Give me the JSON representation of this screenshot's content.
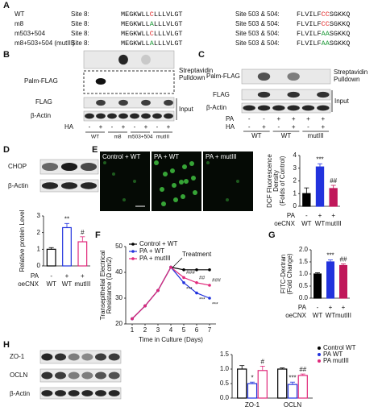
{
  "panel_letters": [
    "A",
    "B",
    "C",
    "D",
    "E",
    "F",
    "G",
    "H"
  ],
  "panel_a": {
    "rows": [
      {
        "name": "WT",
        "site1": "Site 8:",
        "seq1": {
          "parts": [
            "MEGKWLL",
            "C",
            "LLLVLGT"
          ],
          "color": "#e02020"
        },
        "site2": "Site 503 & 504:",
        "seq2": {
          "parts": [
            "FLVILF",
            "CC",
            "SGKKQ"
          ],
          "color": "#e02020"
        }
      },
      {
        "name": "m8",
        "site1": "Site 8:",
        "seq1": {
          "parts": [
            "MEGKWLL",
            "A",
            "LLLVLGT"
          ],
          "color": "#1f9a3a"
        },
        "site2": "Site 503 & 504:",
        "seq2": {
          "parts": [
            "FLVILF",
            "CC",
            "SGKKQ"
          ],
          "color": "#e02020"
        }
      },
      {
        "name": "m503+504",
        "site1": "Site 8:",
        "seq1": {
          "parts": [
            "MEGKWLL",
            "C",
            "LLLVLGT"
          ],
          "color": "#e02020"
        },
        "site2": "Site 503 & 504:",
        "seq2": {
          "parts": [
            "FLVILF",
            "AA",
            "SGKKQ"
          ],
          "color": "#1f9a3a"
        }
      },
      {
        "name": "m8+503+504 (mutIII)",
        "site1": "Site 8:",
        "seq1": {
          "parts": [
            "MEGKWLL",
            "A",
            "LLLVLGT"
          ],
          "color": "#1f9a3a"
        },
        "site2": "Site 503 & 504:",
        "seq2": {
          "parts": [
            "FLVILF",
            "AA",
            "SGKKQ"
          ],
          "color": "#1f9a3a"
        }
      }
    ]
  },
  "panel_b": {
    "pulldown_label": "Palm-FLAG",
    "pulldown": [
      "Streptavidin",
      "Pulldown"
    ],
    "input_labels": [
      "FLAG",
      "β-Actin"
    ],
    "input": "Input",
    "ha_label": "HA",
    "ha": [
      "-",
      "+",
      "-",
      "+",
      "-",
      "+",
      "-",
      "+"
    ],
    "groups": [
      "WT",
      "m8",
      "m503+504",
      "mutIII"
    ]
  },
  "panel_c": {
    "pulldown_label": "Palm-FLAG",
    "pulldown": [
      "Streptavidin",
      "Pulldown"
    ],
    "input_labels": [
      "FLAG",
      "β-Actin"
    ],
    "input": "Input",
    "pa_label": "PA",
    "pa": [
      "-",
      "-",
      "+",
      "+",
      "+",
      "+"
    ],
    "ha_label": "HA",
    "ha": [
      "-",
      "+",
      "-",
      "+",
      "-",
      "+"
    ],
    "groups": [
      "WT",
      "WT",
      "mutIII"
    ]
  },
  "panel_d": {
    "blots": [
      "CHOP",
      "β-Actin"
    ]
  },
  "panel_e": {
    "images": [
      "Control + WT",
      "PA + WT",
      "PA + mutIII"
    ]
  },
  "panel_h": {
    "blots": [
      "ZO-1",
      "OCLN",
      "β-Actin"
    ]
  },
  "chart_data": [
    {
      "type": "bar",
      "ylabel": [
        "Relative protein Level"
      ],
      "values": [
        1.0,
        2.3,
        1.45
      ],
      "errors": [
        0.1,
        0.25,
        0.3
      ],
      "stars": [
        null,
        "**",
        "#"
      ],
      "colors": [
        "#000000",
        "#2233dd",
        "#e0287a"
      ],
      "filled": false,
      "ylim": [
        0,
        3
      ],
      "yticks": [
        0,
        1,
        2,
        3
      ],
      "rows": [
        {
          "label": "PA",
          "values": [
            "-",
            "+",
            "+"
          ]
        },
        {
          "label": "oeCNX",
          "values": [
            "WT",
            "WT",
            "mutIII"
          ]
        }
      ]
    },
    {
      "type": "bar",
      "ylabel": [
        "DCF Fluorescence",
        "Density",
        "(Folds of Control)"
      ],
      "values": [
        1.0,
        3.1,
        1.4
      ],
      "errors": [
        0.45,
        0.25,
        0.25
      ],
      "stars": [
        null,
        "***",
        "##"
      ],
      "colors": [
        "#000000",
        "#2233dd",
        "#c0185a"
      ],
      "filled": true,
      "ylim": [
        0,
        4
      ],
      "yticks": [
        0,
        1,
        2,
        3,
        4
      ],
      "rows": [
        {
          "label": "PA",
          "values": [
            "-",
            "+",
            "+"
          ]
        },
        {
          "label": "oeCNX",
          "values": [
            "WT",
            "WT",
            "mutIII"
          ]
        }
      ]
    },
    {
      "type": "line",
      "ylabel": [
        "Transepithelial Electrical",
        "Resistance (Ω cm2)"
      ],
      "xlabel": "Time in Culture (Days)",
      "annotation": "Treatment",
      "x": [
        1,
        2,
        3,
        4,
        5,
        6,
        7
      ],
      "xlim": [
        0.5,
        7.5
      ],
      "xticks": [
        1,
        2,
        3,
        4,
        5,
        6,
        7
      ],
      "ylim": [
        20,
        50
      ],
      "yticks": [
        20,
        30,
        40,
        50
      ],
      "series": [
        {
          "name": "Control + WT",
          "color": "#000000",
          "values": [
            22,
            27,
            33,
            42,
            41,
            41,
            41
          ],
          "stars": [
            null,
            null,
            null,
            null,
            null,
            null,
            null
          ]
        },
        {
          "name": "PA + WT",
          "color": "#2233dd",
          "values": [
            22,
            27,
            33,
            42,
            36,
            32,
            30
          ],
          "stars": [
            null,
            null,
            null,
            null,
            "***",
            "***",
            "***"
          ]
        },
        {
          "name": "PA + mutIII",
          "color": "#e0287a",
          "values": [
            22,
            27,
            33,
            42,
            38,
            36,
            35
          ],
          "stars": [
            null,
            null,
            null,
            null,
            "###",
            "##",
            "###"
          ]
        }
      ]
    },
    {
      "type": "bar",
      "ylabel": [
        "FITC-Dextran",
        "(Fold Change)"
      ],
      "values": [
        1.0,
        1.5,
        1.35
      ],
      "errors": [
        0.05,
        0.08,
        0.07
      ],
      "stars": [
        null,
        "***",
        "##"
      ],
      "colors": [
        "#000000",
        "#2233dd",
        "#c0185a"
      ],
      "filled": true,
      "ylim": [
        0,
        2
      ],
      "yticks": [
        {
          "value": 0,
          "label": "0.0"
        },
        {
          "value": 0.5,
          "label": "0.5"
        },
        {
          "value": 1,
          "label": "1.0"
        },
        {
          "value": 1.5,
          "label": "1.5"
        },
        {
          "value": 2,
          "label": "2.0"
        }
      ],
      "rows": [
        {
          "label": "PA",
          "values": [
            "-",
            "+",
            "+"
          ]
        },
        {
          "label": "oeCNX",
          "values": [
            "WT",
            "WT",
            "mutIII"
          ]
        }
      ]
    },
    {
      "type": "grouped_bar",
      "categories": [
        "ZO-1",
        "OCLN"
      ],
      "ylim": [
        0,
        1.5
      ],
      "yticks": [
        {
          "value": 0,
          "label": "0.0"
        },
        {
          "value": 0.5,
          "label": "0.5"
        },
        {
          "value": 1,
          "label": "1.0"
        },
        {
          "value": 1.5,
          "label": "1.5"
        }
      ],
      "series": [
        {
          "name": "Control WT",
          "color": "#000000",
          "values": [
            1.0,
            1.0
          ],
          "errors": [
            0.12,
            0.04
          ],
          "stars": [
            null,
            null
          ]
        },
        {
          "name": "PA WT",
          "color": "#2233dd",
          "values": [
            0.5,
            0.47
          ],
          "errors": [
            0.05,
            0.08
          ],
          "stars": [
            "*",
            "***"
          ]
        },
        {
          "name": "PA mutIII",
          "color": "#e0287a",
          "values": [
            0.95,
            0.78
          ],
          "errors": [
            0.15,
            0.05
          ],
          "stars": [
            "#",
            "##"
          ]
        }
      ]
    }
  ]
}
